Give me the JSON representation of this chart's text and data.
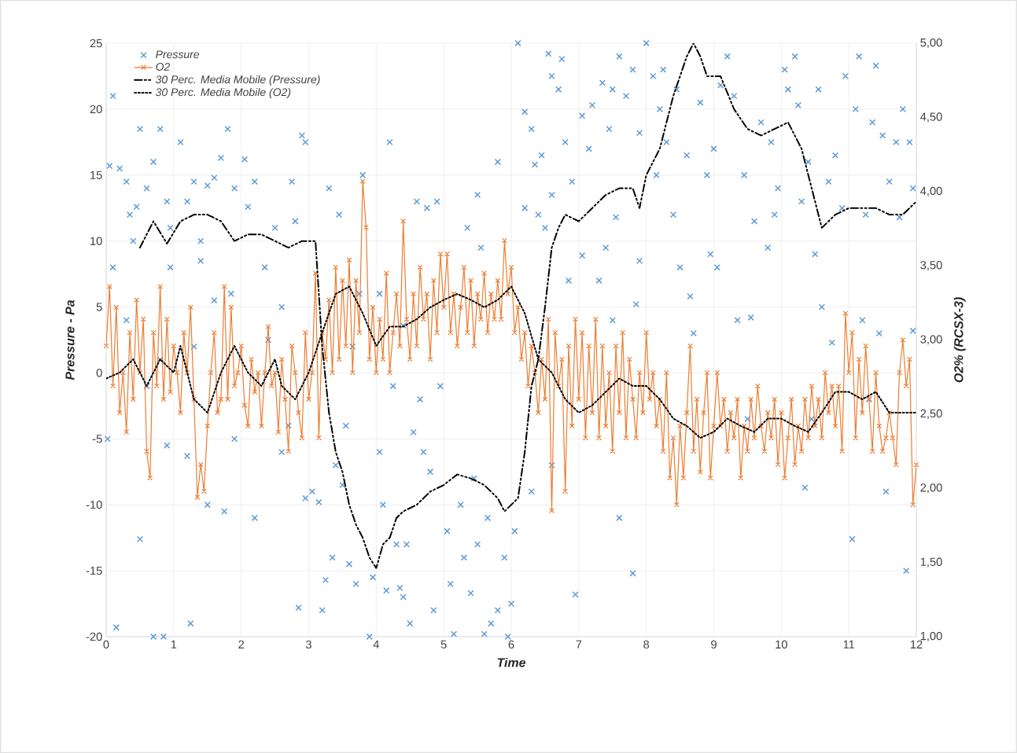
{
  "chart_data": {
    "type": "scatter",
    "xlabel": "Time",
    "ylabel": "Pressure - Pa",
    "y2label": "O2% (RCSX-3)",
    "xlim": [
      0,
      12
    ],
    "xticks": [
      0,
      1,
      2,
      3,
      4,
      5,
      6,
      7,
      8,
      9,
      10,
      11,
      12
    ],
    "ylim": [
      -20,
      25
    ],
    "yticks": [
      -20,
      -15,
      -10,
      -5,
      0,
      5,
      10,
      15,
      20,
      25
    ],
    "y2lim": [
      1,
      5
    ],
    "y2ticks": [
      {
        "value": 1,
        "label": "1,00"
      },
      {
        "value": 1.5,
        "label": "1,50"
      },
      {
        "value": 2,
        "label": "2,00"
      },
      {
        "value": 2.5,
        "label": "2,50"
      },
      {
        "value": 3,
        "label": "3,00"
      },
      {
        "value": 3.5,
        "label": "3,50"
      },
      {
        "value": 4,
        "label": "4,00"
      },
      {
        "value": 4.5,
        "label": "4,50"
      },
      {
        "value": 5,
        "label": "5,00"
      }
    ],
    "grid": true,
    "legend": "top left",
    "series": [
      {
        "name": "Pressure",
        "color": "#5b9bd5",
        "marker": "cross",
        "x": [
          0.1,
          0.05,
          0.2,
          0.3,
          0.35,
          0.1,
          0.4,
          0.5,
          0.6,
          0.45,
          0.7,
          0.8,
          0.9,
          0.95,
          0.02,
          0.15,
          0.5,
          0.7,
          0.85,
          0.9,
          0.6,
          0.3,
          0.8,
          0.95,
          1.1,
          1.2,
          1.3,
          1.4,
          1.5,
          1.6,
          1.7,
          1.8,
          1.9,
          1.25,
          1.2,
          1.5,
          1.75,
          1.4,
          1.6,
          1.85,
          1.3,
          1.9,
          2.05,
          2.1,
          2.2,
          2.35,
          2.5,
          2.4,
          2.6,
          2.75,
          2.8,
          2.9,
          2.95,
          2.2,
          2.6,
          2.85,
          2.7,
          2.95,
          3.05,
          3.15,
          3.2,
          3.25,
          3.35,
          3.4,
          3.5,
          3.6,
          3.7,
          3.55,
          3.65,
          3.8,
          3.9,
          3.95,
          3.3,
          3.45,
          3.75,
          4.05,
          4.1,
          4.15,
          4.25,
          4.3,
          4.35,
          4.4,
          4.45,
          4.5,
          4.55,
          4.65,
          4.7,
          4.8,
          4.85,
          4.95,
          4.6,
          4.75,
          4.9,
          4.05,
          4.4,
          4.2,
          5.05,
          5.1,
          5.15,
          5.3,
          5.4,
          5.5,
          5.6,
          5.7,
          5.8,
          5.9,
          6.0,
          5.45,
          5.65,
          5.25,
          5.35,
          5.5,
          5.55,
          5.8,
          5.95,
          6.05,
          6.1,
          6.2,
          6.3,
          6.35,
          6.45,
          6.55,
          6.6,
          6.7,
          6.8,
          6.9,
          6.75,
          6.2,
          6.4,
          6.5,
          6.6,
          6.95,
          6.6,
          6.3,
          6.85,
          7.05,
          7.15,
          7.2,
          7.35,
          7.45,
          7.5,
          7.6,
          7.7,
          7.8,
          7.9,
          7.05,
          7.3,
          7.4,
          7.5,
          7.6,
          7.8,
          7.85,
          7.55,
          7.9,
          8.0,
          8.1,
          8.2,
          8.3,
          8.4,
          8.5,
          8.6,
          8.65,
          8.7,
          8.8,
          8.9,
          8.95,
          8.15,
          8.25,
          8.45,
          9.0,
          9.05,
          9.2,
          9.3,
          9.35,
          9.45,
          9.6,
          9.7,
          9.8,
          9.9,
          9.95,
          9.1,
          9.55,
          9.85,
          9.5,
          10.05,
          10.1,
          10.2,
          10.3,
          10.4,
          10.5,
          10.6,
          10.7,
          10.8,
          10.9,
          10.45,
          10.35,
          10.25,
          10.55,
          10.95,
          10.75,
          11.05,
          11.1,
          11.15,
          11.25,
          11.35,
          11.4,
          11.5,
          11.6,
          11.7,
          11.8,
          11.9,
          11.95,
          11.55,
          11.2,
          11.45,
          11.85,
          11.95,
          11.75,
          11.3
        ],
        "values": [
          21,
          15.7,
          15.5,
          14.5,
          12,
          8,
          10,
          18.5,
          14,
          12.6,
          16,
          18.5,
          13,
          11,
          -5,
          -19.3,
          -12.6,
          -20,
          -20,
          -5.5,
          -1,
          4,
          1,
          8,
          17.5,
          13,
          14.5,
          10,
          14.2,
          14.8,
          16.3,
          18.5,
          14,
          -19,
          -6.3,
          -10,
          -10.5,
          8.5,
          5.5,
          6,
          2,
          -5,
          16.2,
          12.6,
          14.5,
          8,
          11,
          2.5,
          5,
          14.5,
          11.5,
          18,
          17.5,
          -11,
          -6,
          -17.8,
          -4,
          -9.5,
          -9,
          -9.8,
          -18,
          -15.7,
          -14,
          -7,
          -8.5,
          -14.5,
          -16,
          -4,
          2,
          15,
          -20,
          -15.5,
          14,
          12,
          6,
          -6,
          -10,
          -16.5,
          -1,
          -13,
          -16.3,
          -17,
          -13,
          -19,
          -4.5,
          -2,
          -6,
          -7.5,
          -18,
          -1,
          13,
          12.5,
          13,
          6,
          3.6,
          17.5,
          -12,
          -16,
          -19.8,
          -14,
          -16.7,
          -13,
          -19.8,
          -19,
          -18,
          -14,
          -17.5,
          -8,
          -11,
          -10,
          11,
          13.5,
          9.5,
          16,
          -20,
          -12,
          25,
          19.8,
          18.5,
          15.8,
          16.5,
          24.2,
          22.5,
          21.5,
          17.5,
          14.5,
          23.8,
          12.5,
          12,
          11,
          13.5,
          -16.8,
          -7,
          -9,
          7,
          19.5,
          17,
          20.3,
          22,
          18.5,
          21.5,
          24,
          21,
          23,
          18.2,
          8.9,
          7,
          9.5,
          4,
          -11,
          -15.2,
          5.2,
          11.8,
          8.5,
          25,
          22.5,
          20,
          17.5,
          12,
          8,
          16.5,
          5.8,
          3,
          20.5,
          15,
          9,
          15,
          23,
          21.5,
          17,
          8,
          24,
          21,
          4,
          15,
          11.5,
          19,
          9.5,
          12,
          14,
          21.8,
          4.2,
          17.5,
          -3.5,
          23,
          21.5,
          24,
          13,
          16,
          9,
          5,
          14.5,
          16.5,
          12.5,
          -3.5,
          -8.7,
          20.3,
          21.5,
          22.5,
          2.3,
          -12.6,
          20,
          24,
          12,
          19,
          23.3,
          18,
          14.5,
          17.5,
          20,
          17.5,
          14,
          -9,
          4,
          3,
          -15,
          3.2,
          11.8,
          -2
        ]
      },
      {
        "name": "O2",
        "type": "line",
        "axis": "y2",
        "color": "#ed7d31",
        "marker": "cross",
        "line_style": "solid",
        "x": [
          0,
          0.05,
          0.1,
          0.15,
          0.2,
          0.25,
          0.3,
          0.35,
          0.4,
          0.45,
          0.5,
          0.55,
          0.6,
          0.65,
          0.7,
          0.75,
          0.8,
          0.85,
          0.9,
          0.95,
          1,
          1.05,
          1.1,
          1.15,
          1.2,
          1.25,
          1.3,
          1.35,
          1.4,
          1.45,
          1.5,
          1.55,
          1.6,
          1.65,
          1.7,
          1.75,
          1.8,
          1.85,
          1.9,
          1.95,
          2,
          2.05,
          2.1,
          2.15,
          2.2,
          2.25,
          2.3,
          2.35,
          2.4,
          2.45,
          2.5,
          2.55,
          2.6,
          2.65,
          2.7,
          2.75,
          2.8,
          2.85,
          2.9,
          2.95,
          3,
          3.05,
          3.1,
          3.15,
          3.2,
          3.25,
          3.3,
          3.35,
          3.4,
          3.45,
          3.5,
          3.55,
          3.6,
          3.65,
          3.7,
          3.75,
          3.8,
          3.85,
          3.9,
          3.95,
          4,
          4.05,
          4.1,
          4.15,
          4.2,
          4.25,
          4.3,
          4.35,
          4.4,
          4.45,
          4.5,
          4.55,
          4.6,
          4.65,
          4.7,
          4.75,
          4.8,
          4.85,
          4.9,
          4.95,
          5,
          5.05,
          5.1,
          5.15,
          5.2,
          5.25,
          5.3,
          5.35,
          5.4,
          5.45,
          5.5,
          5.55,
          5.6,
          5.65,
          5.7,
          5.75,
          5.8,
          5.85,
          5.9,
          5.95,
          6,
          6.05,
          6.1,
          6.15,
          6.2,
          6.25,
          6.3,
          6.35,
          6.4,
          6.45,
          6.5,
          6.55,
          6.6,
          6.65,
          6.7,
          6.75,
          6.8,
          6.85,
          6.9,
          6.95,
          7,
          7.05,
          7.1,
          7.15,
          7.2,
          7.25,
          7.3,
          7.35,
          7.4,
          7.45,
          7.5,
          7.55,
          7.6,
          7.65,
          7.7,
          7.75,
          7.8,
          7.85,
          7.9,
          7.95,
          8,
          8.05,
          8.1,
          8.15,
          8.2,
          8.25,
          8.3,
          8.35,
          8.4,
          8.45,
          8.5,
          8.55,
          8.6,
          8.65,
          8.7,
          8.75,
          8.8,
          8.85,
          8.9,
          8.95,
          9,
          9.05,
          9.1,
          9.15,
          9.2,
          9.25,
          9.3,
          9.35,
          9.4,
          9.45,
          9.5,
          9.55,
          9.6,
          9.65,
          9.7,
          9.75,
          9.8,
          9.85,
          9.9,
          9.95,
          10,
          10.05,
          10.1,
          10.15,
          10.2,
          10.25,
          10.3,
          10.35,
          10.4,
          10.45,
          10.5,
          10.55,
          10.6,
          10.65,
          10.7,
          10.75,
          10.8,
          10.85,
          10.9,
          10.95,
          11,
          11.05,
          11.1,
          11.15,
          11.2,
          11.25,
          11.3,
          11.35,
          11.4,
          11.45,
          11.5,
          11.55,
          11.6,
          11.65,
          11.7,
          11.75,
          11.8,
          11.85,
          11.9,
          11.95,
          12
        ],
        "values": [
          2.96,
          3.36,
          2.69,
          3.22,
          2.51,
          2.78,
          2.38,
          3.05,
          2.6,
          3.27,
          2.78,
          3.14,
          2.25,
          2.07,
          3.05,
          2.69,
          3.36,
          2.6,
          3.14,
          2.65,
          2.96,
          2.78,
          2.51,
          3.05,
          2.78,
          3.22,
          2.6,
          1.94,
          2.16,
          1.98,
          2.42,
          2.78,
          3.05,
          2.51,
          2.6,
          3.36,
          2.6,
          3.22,
          2.69,
          2.78,
          2.96,
          2.56,
          2.42,
          2.87,
          2.65,
          2.78,
          2.42,
          2.78,
          3.09,
          2.69,
          2.78,
          2.38,
          2.87,
          2.6,
          2.25,
          2.96,
          2.78,
          2.51,
          2.34,
          3.05,
          2.6,
          2.78,
          3.45,
          2.34,
          3.05,
          2.87,
          3.27,
          2.78,
          3.49,
          2.87,
          3.4,
          2.96,
          3.54,
          2.78,
          3.4,
          3.05,
          4.07,
          3.76,
          2.87,
          3.22,
          2.78,
          3.14,
          2.87,
          3.45,
          2.78,
          3.05,
          3.31,
          2.96,
          3.8,
          3.14,
          2.87,
          3.31,
          2.96,
          3.49,
          3.14,
          3.31,
          2.87,
          3.4,
          3.05,
          3.58,
          3.22,
          3.58,
          3.05,
          3.31,
          2.96,
          3.22,
          3.49,
          3.05,
          3.4,
          2.96,
          3.31,
          3.14,
          3.45,
          3.05,
          3.31,
          3.14,
          3.4,
          3.14,
          3.67,
          3.31,
          3.49,
          3.05,
          3.22,
          2.87,
          3.05,
          2.69,
          2.96,
          2.78,
          2.51,
          2.87,
          2.6,
          3.14,
          1.85,
          3.05,
          2.69,
          2.87,
          1.98,
          2.96,
          2.42,
          3.14,
          2.6,
          3.05,
          2.34,
          2.96,
          2.51,
          3.14,
          2.34,
          2.96,
          2.42,
          2.78,
          2.25,
          2.96,
          2.51,
          3.05,
          2.34,
          2.87,
          2.6,
          2.34,
          2.78,
          2.51,
          3.05,
          2.6,
          2.78,
          2.42,
          2.6,
          2.25,
          2.78,
          2.07,
          2.34,
          1.89,
          2.42,
          2.07,
          2.51,
          2.96,
          2.25,
          2.6,
          2.11,
          2.51,
          2.78,
          2.07,
          2.42,
          2.78,
          2.42,
          2.6,
          2.25,
          2.51,
          2.34,
          2.6,
          2.07,
          2.42,
          2.25,
          2.6,
          2.34,
          2.69,
          2.42,
          2.25,
          2.51,
          2.34,
          2.6,
          2.16,
          2.51,
          2.07,
          2.34,
          2.6,
          2.16,
          2.42,
          2.25,
          2.6,
          2.34,
          2.69,
          2.42,
          2.6,
          2.34,
          2.78,
          2.51,
          2.69,
          2.42,
          2.69,
          2.25,
          3.18,
          2.78,
          3.05,
          2.34,
          2.87,
          2.51,
          2.96,
          2.6,
          2.25,
          2.78,
          2.42,
          2.25,
          2.34,
          2.51,
          2.34,
          2.16,
          2.78,
          3.0,
          2.69,
          2.87,
          1.89,
          2.16
        ]
      },
      {
        "name": "30 Perc. Media Mobile (Pressure)",
        "type": "line",
        "color": "#000000",
        "marker": "none",
        "line_style": "dashdot",
        "x": [
          0.5,
          0.7,
          0.9,
          1.1,
          1.3,
          1.5,
          1.7,
          1.9,
          2.1,
          2.3,
          2.5,
          2.7,
          2.9,
          3.1,
          3.2,
          3.3,
          3.4,
          3.5,
          3.6,
          3.7,
          3.8,
          3.9,
          4.0,
          4.1,
          4.2,
          4.3,
          4.4,
          4.6,
          4.8,
          5.0,
          5.2,
          5.4,
          5.6,
          5.8,
          5.9,
          6.0,
          6.1,
          6.2,
          6.3,
          6.4,
          6.5,
          6.6,
          6.7,
          6.8,
          7.0,
          7.2,
          7.4,
          7.6,
          7.8,
          7.9,
          8.0,
          8.2,
          8.4,
          8.6,
          8.7,
          8.8,
          8.9,
          9.1,
          9.3,
          9.5,
          9.7,
          9.9,
          10.1,
          10.3,
          10.5,
          10.6,
          10.8,
          11.0,
          11.2,
          11.4,
          11.6,
          11.8,
          12.0
        ],
        "values": [
          9.5,
          11.5,
          9.8,
          11.5,
          12,
          12,
          11.5,
          10,
          10.5,
          10.5,
          10,
          9.5,
          10,
          10,
          2,
          -3,
          -6,
          -7.5,
          -10,
          -11.5,
          -12.5,
          -14,
          -14.8,
          -13,
          -12.5,
          -11,
          -10.5,
          -10,
          -9,
          -8.5,
          -7.7,
          -8,
          -8.5,
          -9.5,
          -10.5,
          -10,
          -9.5,
          -6,
          -1,
          1,
          5,
          9.5,
          11,
          12,
          11.5,
          12.5,
          13.5,
          14,
          14,
          12.5,
          15,
          17,
          21,
          24,
          25,
          24,
          22.5,
          22.5,
          20,
          18.5,
          18,
          18.5,
          19,
          17,
          13,
          11,
          12,
          12.5,
          12.5,
          12.5,
          12,
          12,
          13
        ]
      },
      {
        "name": "30 Perc. Media Mobile (O2)",
        "type": "line",
        "axis": "y2",
        "color": "#000000",
        "marker": "none",
        "line_style": "dotted",
        "x": [
          0,
          0.2,
          0.4,
          0.5,
          0.6,
          0.8,
          1.0,
          1.1,
          1.3,
          1.5,
          1.7,
          1.9,
          2.1,
          2.3,
          2.5,
          2.6,
          2.8,
          3.0,
          3.2,
          3.4,
          3.6,
          3.8,
          4.0,
          4.2,
          4.4,
          4.6,
          4.8,
          5.0,
          5.2,
          5.4,
          5.6,
          5.8,
          6.0,
          6.2,
          6.4,
          6.6,
          6.8,
          7.0,
          7.2,
          7.4,
          7.6,
          7.8,
          8.0,
          8.2,
          8.4,
          8.6,
          8.8,
          9.0,
          9.2,
          9.4,
          9.6,
          9.8,
          10.0,
          10.2,
          10.4,
          10.6,
          10.8,
          11.0,
          11.2,
          11.4,
          11.6,
          11.8,
          12.0
        ],
        "values": [
          2.74,
          2.78,
          2.87,
          2.78,
          2.69,
          2.87,
          2.78,
          2.96,
          2.6,
          2.51,
          2.78,
          2.96,
          2.78,
          2.69,
          2.87,
          2.69,
          2.6,
          2.78,
          3.05,
          3.31,
          3.36,
          3.18,
          2.96,
          3.09,
          3.09,
          3.14,
          3.22,
          3.27,
          3.31,
          3.27,
          3.22,
          3.27,
          3.36,
          3.18,
          2.87,
          2.78,
          2.6,
          2.51,
          2.56,
          2.65,
          2.74,
          2.69,
          2.69,
          2.6,
          2.47,
          2.42,
          2.34,
          2.38,
          2.47,
          2.42,
          2.38,
          2.47,
          2.47,
          2.42,
          2.38,
          2.51,
          2.65,
          2.65,
          2.6,
          2.65,
          2.51,
          2.51,
          2.51
        ]
      }
    ]
  }
}
